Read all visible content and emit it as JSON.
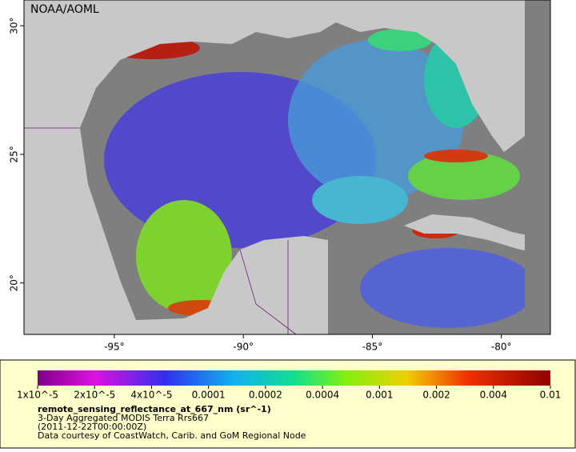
{
  "map": {
    "watermark": "NOAA/AOML",
    "xlim": [
      -98.5,
      -78.1
    ],
    "ylim": [
      18,
      31
    ],
    "xticks": [
      {
        "value": -95,
        "label": "-95°"
      },
      {
        "value": -90,
        "label": "-90°"
      },
      {
        "value": -85,
        "label": "-85°"
      },
      {
        "value": -80,
        "label": "-80°"
      }
    ],
    "yticks": [
      {
        "value": 30,
        "label": "30°"
      },
      {
        "value": 25,
        "label": "25°"
      },
      {
        "value": 20,
        "label": "20°"
      }
    ]
  },
  "colorbar": {
    "ticks": [
      {
        "value": 1e-05,
        "label": "1x10^-5"
      },
      {
        "value": 2e-05,
        "label": "2x10^-5"
      },
      {
        "value": 4e-05,
        "label": "4x10^-5"
      },
      0.0001,
      0.0002,
      0.0004,
      0.001,
      0.002,
      0.004,
      0.01
    ],
    "title": "remote_sensing_reflectance_at_667_nm (sr^-1)",
    "lines": [
      "3-Day Aggregated MODIS Terra Rrs667",
      "(2011-12-22T00:00:00Z)",
      "Data courtesy of CoastWatch, Carib. and GoM Regional Node"
    ]
  }
}
